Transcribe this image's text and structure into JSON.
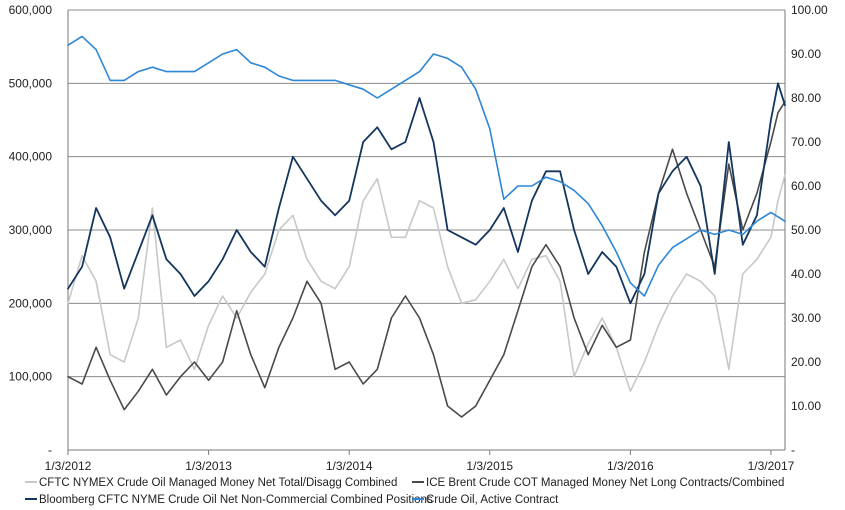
{
  "chart_data": {
    "type": "line",
    "title": "",
    "xlabel": "",
    "ylabel": "",
    "ylabel_right": "",
    "x_ticks": [
      "1/3/2012",
      "1/3/2013",
      "1/3/2014",
      "1/3/2015",
      "1/3/2016",
      "1/3/2017"
    ],
    "y_left_ticks": [
      "-",
      "100,000",
      "200,000",
      "300,000",
      "400,000",
      "500,000",
      "600,000"
    ],
    "y_right_ticks": [
      "-",
      "10.00",
      "20.00",
      "30.00",
      "40.00",
      "50.00",
      "60.00",
      "70.00",
      "80.00",
      "90.00",
      "100.00"
    ],
    "ylim_left": [
      0,
      600000
    ],
    "ylim_right": [
      0,
      100
    ],
    "xlim": [
      2012.0,
      2017.1
    ],
    "grid": "horizontal",
    "legend_position": "bottom",
    "x": [
      2012.0,
      2012.1,
      2012.2,
      2012.3,
      2012.4,
      2012.5,
      2012.6,
      2012.7,
      2012.8,
      2012.9,
      2013.0,
      2013.1,
      2013.2,
      2013.3,
      2013.4,
      2013.5,
      2013.6,
      2013.7,
      2013.8,
      2013.9,
      2014.0,
      2014.1,
      2014.2,
      2014.3,
      2014.4,
      2014.5,
      2014.6,
      2014.7,
      2014.8,
      2014.9,
      2015.0,
      2015.1,
      2015.2,
      2015.3,
      2015.4,
      2015.5,
      2015.6,
      2015.7,
      2015.8,
      2015.9,
      2016.0,
      2016.1,
      2016.2,
      2016.3,
      2016.4,
      2016.5,
      2016.6,
      2016.7,
      2016.8,
      2016.9,
      2017.0,
      2017.05,
      2017.1
    ],
    "series": [
      {
        "name": "CFTC NYMEX Crude Oil Managed Money Net Total/Disagg Combined",
        "axis": "left",
        "color": "#c8c8c8",
        "values": [
          200000,
          265000,
          230000,
          130000,
          120000,
          180000,
          330000,
          140000,
          150000,
          110000,
          170000,
          210000,
          180000,
          215000,
          240000,
          300000,
          320000,
          260000,
          230000,
          220000,
          250000,
          340000,
          370000,
          290000,
          290000,
          340000,
          330000,
          250000,
          200000,
          205000,
          230000,
          260000,
          220000,
          260000,
          265000,
          230000,
          100000,
          145000,
          180000,
          140000,
          80000,
          120000,
          170000,
          210000,
          240000,
          230000,
          210000,
          110000,
          240000,
          260000,
          290000,
          340000,
          375000
        ]
      },
      {
        "name": "ICE Brent Crude COT Managed Money Net Long Contracts/Combined",
        "axis": "left",
        "color": "#4a4a4a",
        "values": [
          100000,
          90000,
          140000,
          95000,
          55000,
          80000,
          110000,
          75000,
          100000,
          120000,
          95000,
          120000,
          190000,
          130000,
          85000,
          140000,
          180000,
          230000,
          200000,
          110000,
          120000,
          90000,
          110000,
          180000,
          210000,
          180000,
          130000,
          60000,
          45000,
          60000,
          95000,
          130000,
          190000,
          250000,
          280000,
          250000,
          180000,
          130000,
          170000,
          140000,
          150000,
          270000,
          350000,
          410000,
          350000,
          300000,
          250000,
          390000,
          300000,
          350000,
          420000,
          460000,
          475000
        ]
      },
      {
        "name": "Bloomberg CFTC NYME Crude Oil Net Non-Commercial Combined Positions",
        "axis": "left",
        "color": "#14365e",
        "values": [
          220000,
          250000,
          330000,
          290000,
          220000,
          270000,
          320000,
          260000,
          240000,
          210000,
          230000,
          260000,
          300000,
          270000,
          250000,
          330000,
          400000,
          370000,
          340000,
          320000,
          340000,
          420000,
          440000,
          410000,
          420000,
          480000,
          420000,
          300000,
          290000,
          280000,
          300000,
          330000,
          270000,
          340000,
          380000,
          380000,
          300000,
          240000,
          270000,
          250000,
          200000,
          240000,
          350000,
          380000,
          400000,
          360000,
          240000,
          420000,
          280000,
          320000,
          450000,
          500000,
          470000
        ]
      },
      {
        "name": "Crude Oil, Active Contract",
        "axis": "right",
        "color": "#2e86d6",
        "values": [
          92,
          94,
          91,
          84,
          84,
          86,
          87,
          86,
          86,
          86,
          88,
          90,
          91,
          88,
          87,
          85,
          84,
          84,
          84,
          84,
          83,
          82,
          80,
          82,
          84,
          86,
          90,
          89,
          87,
          82,
          73,
          57,
          60,
          60,
          62,
          61,
          59,
          56,
          51,
          45,
          38,
          35,
          42,
          46,
          48,
          50,
          49,
          50,
          49,
          52,
          54,
          53,
          52
        ]
      }
    ]
  }
}
